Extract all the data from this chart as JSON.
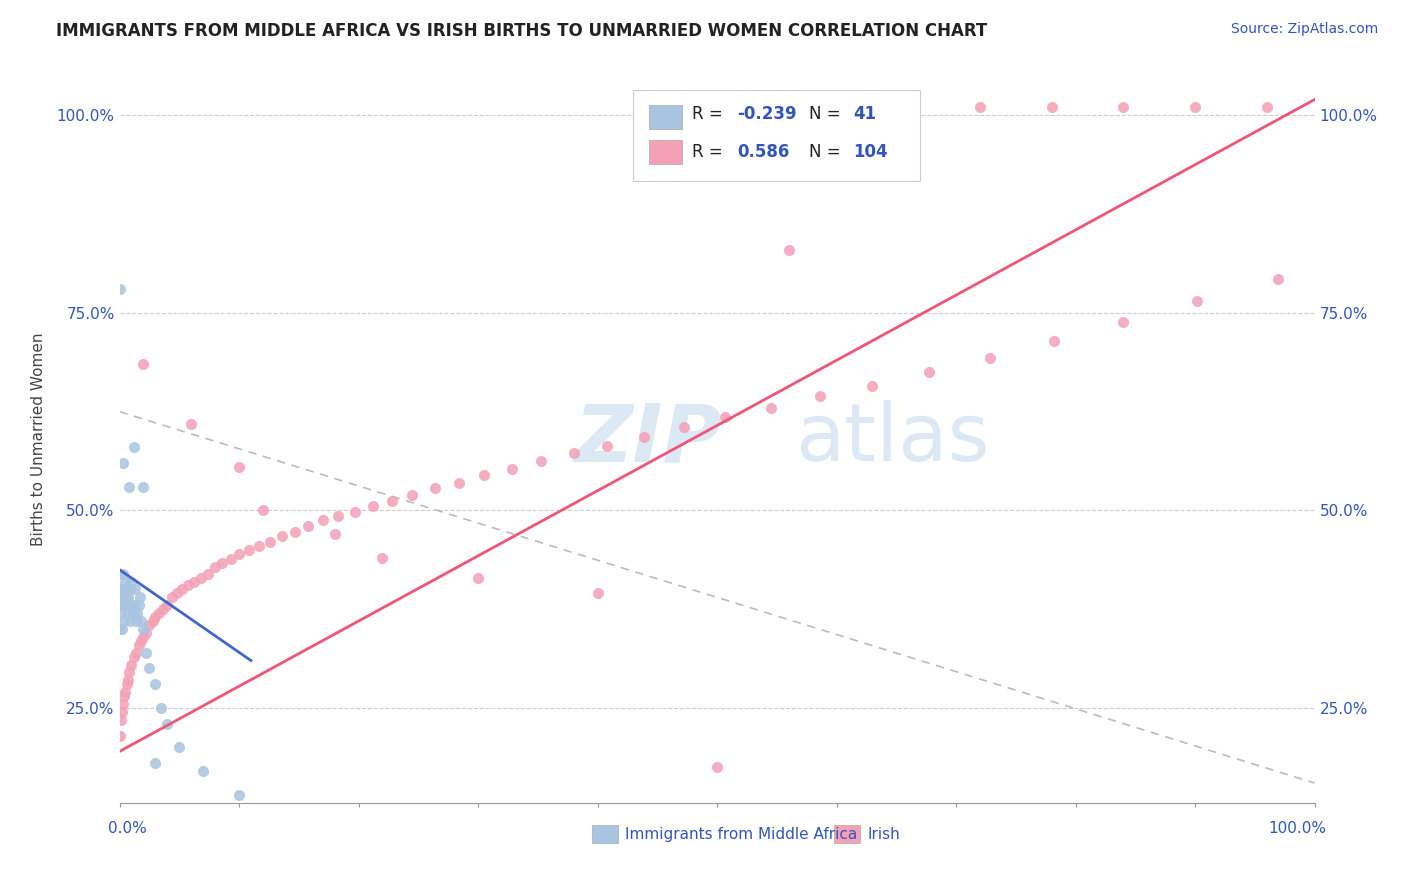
{
  "title": "IMMIGRANTS FROM MIDDLE AFRICA VS IRISH BIRTHS TO UNMARRIED WOMEN CORRELATION CHART",
  "source": "Source: ZipAtlas.com",
  "ylabel": "Births to Unmarried Women",
  "color_blue": "#a8c4e0",
  "color_pink": "#f4a0b5",
  "color_blue_text": "#3355bb",
  "color_blue_line": "#4466cc",
  "color_pink_line": "#ee5577",
  "color_dashed": "#bbbbbb",
  "watermark_color": "#dde8f5",
  "blue_scatter_x": [
    0.0,
    0.0,
    0.0,
    0.001,
    0.001,
    0.002,
    0.002,
    0.002,
    0.003,
    0.003,
    0.004,
    0.004,
    0.005,
    0.005,
    0.006,
    0.006,
    0.007,
    0.007,
    0.008,
    0.008,
    0.009,
    0.009,
    0.01,
    0.01,
    0.011,
    0.012,
    0.013,
    0.014,
    0.015,
    0.016,
    0.017,
    0.018,
    0.02,
    0.022,
    0.025,
    0.03,
    0.035,
    0.04,
    0.05,
    0.07,
    0.1
  ],
  "blue_scatter_y": [
    0.42,
    0.38,
    0.35,
    0.4,
    0.37,
    0.39,
    0.35,
    0.38,
    0.4,
    0.42,
    0.38,
    0.36,
    0.41,
    0.39,
    0.4,
    0.38,
    0.37,
    0.39,
    0.4,
    0.38,
    0.36,
    0.4,
    0.41,
    0.38,
    0.37,
    0.38,
    0.4,
    0.36,
    0.37,
    0.38,
    0.39,
    0.36,
    0.35,
    0.32,
    0.3,
    0.28,
    0.25,
    0.23,
    0.2,
    0.17,
    0.14
  ],
  "blue_outlier_x": [
    0.0,
    0.003,
    0.008,
    0.012,
    0.02,
    0.03
  ],
  "blue_outlier_y": [
    0.78,
    0.56,
    0.53,
    0.58,
    0.53,
    0.18
  ],
  "pink_scatter_x": [
    0.0,
    0.001,
    0.002,
    0.003,
    0.004,
    0.005,
    0.006,
    0.007,
    0.008,
    0.01,
    0.012,
    0.014,
    0.016,
    0.018,
    0.02,
    0.022,
    0.025,
    0.028,
    0.03,
    0.033,
    0.036,
    0.04,
    0.044,
    0.048,
    0.052,
    0.057,
    0.062,
    0.068,
    0.074,
    0.08,
    0.086,
    0.093,
    0.1,
    0.108,
    0.117,
    0.126,
    0.136,
    0.147,
    0.158,
    0.17,
    0.183,
    0.197,
    0.212,
    0.228,
    0.245,
    0.264,
    0.284,
    0.305,
    0.328,
    0.353,
    0.38,
    0.408,
    0.439,
    0.472,
    0.507,
    0.545,
    0.586,
    0.63,
    0.677,
    0.728,
    0.782,
    0.84,
    0.902,
    0.969
  ],
  "pink_scatter_y": [
    0.215,
    0.235,
    0.245,
    0.255,
    0.265,
    0.27,
    0.28,
    0.285,
    0.295,
    0.305,
    0.315,
    0.32,
    0.33,
    0.335,
    0.34,
    0.345,
    0.355,
    0.36,
    0.365,
    0.37,
    0.375,
    0.38,
    0.39,
    0.395,
    0.4,
    0.405,
    0.41,
    0.415,
    0.42,
    0.428,
    0.433,
    0.438,
    0.445,
    0.45,
    0.455,
    0.46,
    0.468,
    0.473,
    0.48,
    0.488,
    0.493,
    0.498,
    0.505,
    0.512,
    0.52,
    0.528,
    0.535,
    0.545,
    0.553,
    0.562,
    0.573,
    0.582,
    0.593,
    0.605,
    0.618,
    0.63,
    0.645,
    0.658,
    0.675,
    0.693,
    0.715,
    0.738,
    0.765,
    0.793
  ],
  "pink_outlier_x": [
    0.02,
    0.06,
    0.1,
    0.12,
    0.18,
    0.22,
    0.3,
    0.4,
    0.5,
    0.56
  ],
  "pink_outlier_y": [
    0.685,
    0.61,
    0.555,
    0.5,
    0.47,
    0.44,
    0.415,
    0.395,
    0.175,
    0.83
  ],
  "pink_top_x": [
    0.58,
    0.65,
    0.72,
    0.78,
    0.84,
    0.9,
    0.96
  ],
  "pink_top_y": [
    1.01,
    1.01,
    1.01,
    1.01,
    1.01,
    1.01,
    1.01
  ],
  "blue_line_x": [
    0.0,
    0.11
  ],
  "blue_line_y": [
    0.425,
    0.31
  ],
  "pink_line_x": [
    0.0,
    1.0
  ],
  "pink_line_y": [
    0.195,
    1.02
  ],
  "dashed_line_x": [
    0.0,
    1.0
  ],
  "dashed_line_y": [
    0.625,
    0.155
  ],
  "xlim": [
    0.0,
    1.0
  ],
  "ylim": [
    0.13,
    1.05
  ],
  "yticks": [
    0.25,
    0.5,
    0.75,
    1.0
  ],
  "ytick_labels": [
    "25.0%",
    "50.0%",
    "75.0%",
    "100.0%"
  ],
  "xtick_left_label": "0.0%",
  "xtick_right_label": "100.0%",
  "legend_label1": "R = -0.239   N =  41",
  "legend_label2": "R =  0.586   N = 104",
  "bottom_legend_blue": "Immigrants from Middle Africa",
  "bottom_legend_pink": "Irish"
}
